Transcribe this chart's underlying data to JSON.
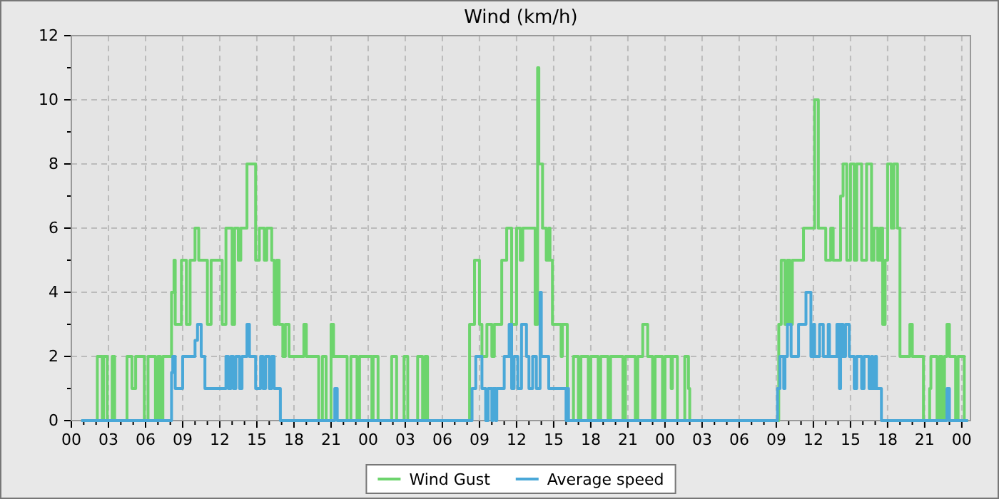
{
  "chart_data": {
    "type": "step",
    "title": "Wind (km/h)",
    "xlim": [
      0,
      72.7
    ],
    "ylim": [
      0,
      12
    ],
    "xticks": [
      {
        "value": 0,
        "label": "00"
      },
      {
        "value": 1,
        "label": null
      },
      {
        "value": 2,
        "label": null
      },
      {
        "value": 3,
        "label": "03"
      },
      {
        "value": 4,
        "label": null
      },
      {
        "value": 5,
        "label": null
      },
      {
        "value": 6,
        "label": "06"
      },
      {
        "value": 7,
        "label": null
      },
      {
        "value": 8,
        "label": null
      },
      {
        "value": 9,
        "label": "09"
      },
      {
        "value": 10,
        "label": null
      },
      {
        "value": 11,
        "label": null
      },
      {
        "value": 12,
        "label": "12"
      },
      {
        "value": 13,
        "label": null
      },
      {
        "value": 14,
        "label": null
      },
      {
        "value": 15,
        "label": "15"
      },
      {
        "value": 16,
        "label": null
      },
      {
        "value": 17,
        "label": null
      },
      {
        "value": 18,
        "label": "18"
      },
      {
        "value": 19,
        "label": null
      },
      {
        "value": 20,
        "label": null
      },
      {
        "value": 21,
        "label": "21"
      },
      {
        "value": 22,
        "label": null
      },
      {
        "value": 23,
        "label": null
      },
      {
        "value": 24,
        "label": "00"
      },
      {
        "value": 25,
        "label": null
      },
      {
        "value": 26,
        "label": null
      },
      {
        "value": 27,
        "label": "03"
      },
      {
        "value": 28,
        "label": null
      },
      {
        "value": 29,
        "label": null
      },
      {
        "value": 30,
        "label": "06"
      },
      {
        "value": 31,
        "label": null
      },
      {
        "value": 32,
        "label": null
      },
      {
        "value": 33,
        "label": "09"
      },
      {
        "value": 34,
        "label": null
      },
      {
        "value": 35,
        "label": null
      },
      {
        "value": 36,
        "label": "12"
      },
      {
        "value": 37,
        "label": null
      },
      {
        "value": 38,
        "label": null
      },
      {
        "value": 39,
        "label": "15"
      },
      {
        "value": 40,
        "label": null
      },
      {
        "value": 41,
        "label": null
      },
      {
        "value": 42,
        "label": "18"
      },
      {
        "value": 43,
        "label": null
      },
      {
        "value": 44,
        "label": null
      },
      {
        "value": 45,
        "label": "21"
      },
      {
        "value": 46,
        "label": null
      },
      {
        "value": 47,
        "label": null
      },
      {
        "value": 48,
        "label": "00"
      },
      {
        "value": 49,
        "label": null
      },
      {
        "value": 50,
        "label": null
      },
      {
        "value": 51,
        "label": "03"
      },
      {
        "value": 52,
        "label": null
      },
      {
        "value": 53,
        "label": null
      },
      {
        "value": 54,
        "label": "06"
      },
      {
        "value": 55,
        "label": null
      },
      {
        "value": 56,
        "label": null
      },
      {
        "value": 57,
        "label": "09"
      },
      {
        "value": 58,
        "label": null
      },
      {
        "value": 59,
        "label": null
      },
      {
        "value": 60,
        "label": "12"
      },
      {
        "value": 61,
        "label": null
      },
      {
        "value": 62,
        "label": null
      },
      {
        "value": 63,
        "label": "15"
      },
      {
        "value": 64,
        "label": null
      },
      {
        "value": 65,
        "label": null
      },
      {
        "value": 66,
        "label": "18"
      },
      {
        "value": 67,
        "label": null
      },
      {
        "value": 68,
        "label": null
      },
      {
        "value": 69,
        "label": "21"
      },
      {
        "value": 70,
        "label": null
      },
      {
        "value": 71,
        "label": null
      },
      {
        "value": 72,
        "label": "00"
      }
    ],
    "yticks": [
      0,
      {
        "value": 1,
        "label": null
      },
      2,
      {
        "value": 3,
        "label": null
      },
      4,
      {
        "value": 5,
        "label": null
      },
      6,
      {
        "value": 7,
        "label": null
      },
      8,
      {
        "value": 9,
        "label": null
      },
      10,
      {
        "value": 11,
        "label": null
      },
      12
    ],
    "grid": true,
    "legend": "bottom",
    "line_style": "solid",
    "marker": "none",
    "series": [
      {
        "name": "Wind Gust",
        "color": "#6dd46d",
        "x": [
          0.8,
          2.1,
          2.5,
          2.6,
          2.9,
          3.3,
          3.5,
          4.5,
          4.9,
          5.2,
          5.9,
          6.2,
          6.8,
          7.0,
          7.2,
          7.4,
          8.1,
          8.3,
          8.4,
          8.9,
          9.3,
          9.6,
          10.0,
          10.3,
          11.0,
          11.3,
          12.2,
          12.5,
          13.0,
          13.2,
          13.5,
          13.7,
          14.2,
          14.9,
          15.2,
          15.6,
          15.8,
          16.2,
          16.4,
          16.6,
          16.8,
          17.1,
          17.3,
          17.6,
          18.8,
          19.0,
          20.0,
          20.3,
          20.6,
          21.0,
          21.2,
          22.3,
          22.6,
          23.1,
          23.3,
          24.3,
          24.4,
          24.8,
          25.9,
          26.3,
          26.9,
          27.2,
          28.0,
          28.4,
          28.6,
          28.8,
          32.2,
          32.6,
          33.0,
          33.2,
          33.6,
          34.0,
          34.2,
          34.8,
          35.2,
          35.6,
          36.0,
          36.3,
          36.5,
          37.5,
          37.7,
          37.8,
          38.1,
          38.4,
          38.6,
          38.7,
          38.9,
          39.6,
          39.7,
          40.1,
          40.6,
          41.0,
          41.2,
          41.8,
          42.0,
          42.6,
          42.8,
          43.4,
          43.6,
          44.6,
          44.8,
          45.6,
          45.8,
          46.2,
          46.6,
          47.0,
          47.2,
          47.8,
          48.0,
          48.5,
          48.6,
          49.0,
          49.6,
          49.9,
          50.0,
          57.2,
          57.4,
          57.7,
          57.9,
          58.1,
          58.3,
          59.2,
          60.1,
          60.4,
          61.0,
          61.4,
          61.6,
          62.2,
          62.4,
          62.7,
          63.0,
          63.3,
          63.5,
          63.9,
          64.3,
          64.7,
          64.9,
          65.2,
          65.4,
          65.6,
          65.8,
          66.0,
          66.3,
          66.5,
          66.8,
          67.0,
          67.8,
          68.0,
          68.9,
          69.4,
          69.5,
          70.0,
          70.2,
          70.4,
          70.6,
          70.8,
          71.0,
          71.5,
          71.7,
          72.2,
          72.5
        ],
        "values": [
          0,
          2,
          0,
          2,
          0,
          2,
          0,
          2,
          1,
          2,
          0,
          2,
          0,
          2,
          0,
          2,
          4,
          5,
          3,
          5,
          3,
          5,
          6,
          5,
          3,
          5,
          3,
          6,
          3,
          6,
          5,
          6,
          8,
          5,
          6,
          5,
          6,
          5,
          3,
          5,
          3,
          2,
          3,
          2,
          3,
          2,
          0,
          2,
          0,
          3,
          2,
          0,
          2,
          0,
          2,
          0,
          2,
          0,
          2,
          0,
          2,
          0,
          2,
          0,
          2,
          0,
          3,
          5,
          3,
          2,
          3,
          2,
          3,
          5,
          6,
          3,
          6,
          5,
          6,
          3,
          11,
          8,
          6,
          5,
          6,
          5,
          3,
          2,
          3,
          0,
          2,
          0,
          2,
          0,
          2,
          0,
          2,
          0,
          2,
          0,
          2,
          0,
          2,
          3,
          2,
          0,
          2,
          0,
          2,
          1,
          2,
          0,
          2,
          1,
          0,
          3,
          5,
          3,
          5,
          3,
          5,
          6,
          10,
          6,
          5,
          6,
          5,
          7,
          8,
          5,
          8,
          5,
          8,
          5,
          8,
          5,
          6,
          5,
          6,
          3,
          5,
          8,
          6,
          8,
          6,
          2,
          3,
          2,
          0,
          1,
          2,
          0,
          2,
          0,
          2,
          3,
          2,
          0,
          2,
          0,
          0
        ]
      },
      {
        "name": "Average speed",
        "color": "#4aa8d8",
        "x": [
          0.8,
          8.1,
          8.2,
          8.4,
          9.0,
          10.0,
          10.2,
          10.5,
          10.8,
          12.5,
          12.7,
          12.9,
          13.1,
          13.3,
          13.6,
          13.8,
          14.2,
          14.4,
          14.9,
          15.3,
          15.5,
          15.7,
          16.0,
          16.2,
          16.4,
          16.9,
          21.3,
          21.5,
          32.4,
          32.7,
          33.2,
          33.5,
          33.7,
          34.0,
          34.1,
          34.3,
          34.4,
          35.0,
          35.4,
          35.6,
          35.8,
          36.1,
          36.4,
          36.8,
          37.0,
          37.3,
          37.6,
          37.9,
          38.0,
          38.6,
          40.0,
          40.1,
          40.2,
          57.1,
          57.3,
          57.6,
          57.7,
          57.9,
          58.2,
          58.8,
          59.4,
          59.8,
          60.0,
          60.1,
          60.5,
          60.8,
          61.2,
          61.3,
          61.9,
          62.1,
          62.2,
          62.4,
          62.6,
          62.9,
          63.3,
          63.5,
          63.9,
          64.1,
          64.5,
          64.7,
          64.8,
          65.0,
          65.1,
          65.5,
          70.8,
          71.0,
          72.5
        ],
        "values": [
          0,
          1.5,
          2,
          1,
          2,
          2.5,
          3,
          2,
          1,
          2,
          1,
          2,
          1,
          2,
          1,
          2,
          3,
          2,
          1,
          2,
          1,
          2,
          1,
          2,
          1,
          0,
          1,
          0,
          1,
          2,
          1,
          0,
          1,
          0,
          1,
          0,
          1,
          2,
          3,
          1,
          2,
          1,
          3,
          2,
          1,
          2,
          1,
          4,
          2,
          1,
          0,
          1,
          0,
          1,
          2,
          1,
          2,
          3,
          2,
          3,
          4,
          2,
          3,
          2,
          3,
          2,
          3,
          2,
          3,
          1,
          3,
          2,
          3,
          2,
          1,
          2,
          1,
          2,
          1,
          2,
          1,
          2,
          1,
          0,
          1,
          0,
          0
        ]
      }
    ]
  }
}
